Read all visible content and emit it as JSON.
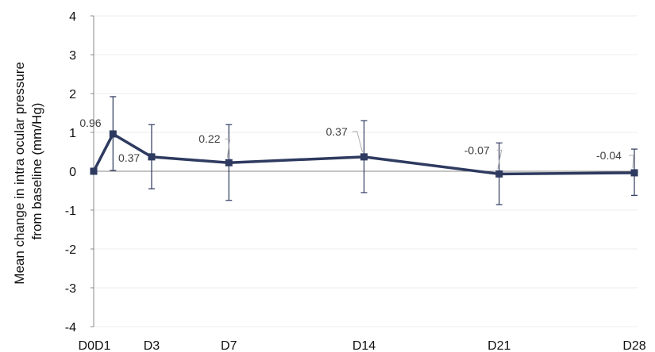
{
  "chart_data": {
    "type": "line",
    "title": "",
    "ylabel_lines": [
      "Mean change in intra ocular pressure",
      "from baseline (mm/Hg)"
    ],
    "xlabel": "",
    "x_days": [
      0,
      1,
      3,
      7,
      14,
      21,
      28
    ],
    "categories": [
      "D0",
      "D1",
      "D3",
      "D7",
      "D14",
      "D21",
      "D28"
    ],
    "ylim": [
      -4,
      4
    ],
    "y_ticks": [
      "4",
      "3",
      "2",
      "1",
      "0",
      "-1",
      "-2",
      "-3",
      "-4"
    ],
    "grid": true,
    "series": [
      {
        "values": [
          0,
          0.96,
          0.37,
          0.22,
          0.37,
          -0.07,
          -0.04
        ],
        "error_upper": [
          0,
          1.92,
          1.2,
          1.2,
          1.3,
          0.73,
          0.57
        ],
        "error_lower": [
          0,
          0.02,
          -0.45,
          -0.75,
          -0.55,
          -0.86,
          -0.62
        ],
        "data_labels": [
          "",
          "0.96",
          "0.37",
          "0.22",
          "0.37",
          "-0.07",
          "-0.04"
        ],
        "color": "#2e3a5f"
      }
    ]
  }
}
